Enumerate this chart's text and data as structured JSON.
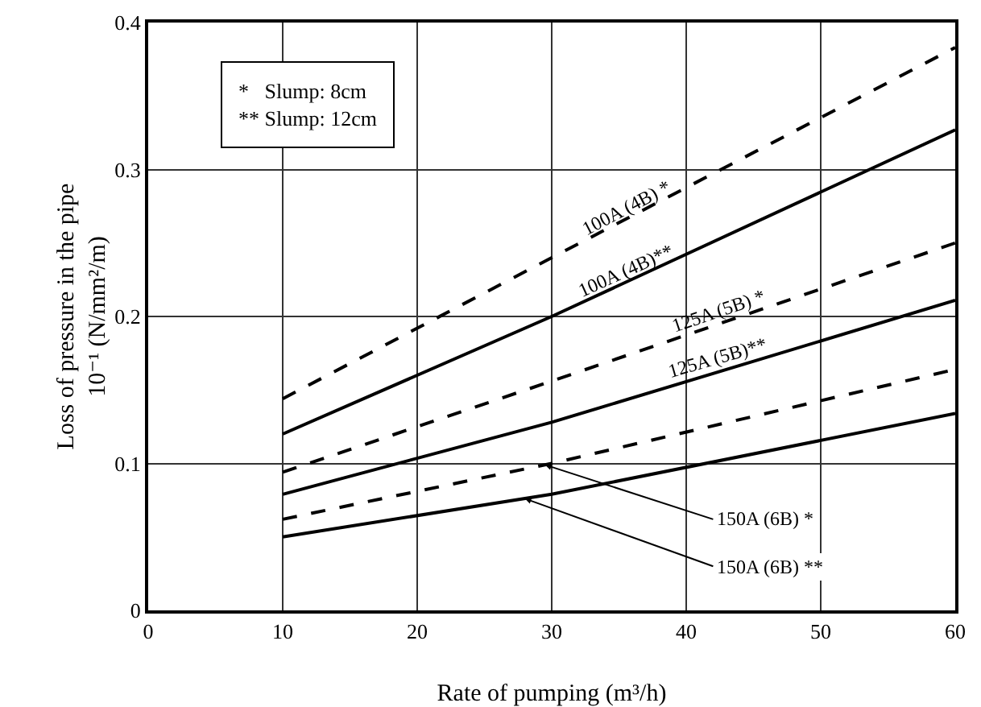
{
  "chart_data": {
    "type": "line",
    "xlabel": "Rate of pumping (m³/h)",
    "ylabel": "Loss of pressure in the pipe\n10⁻¹ (N/mm²/m)",
    "xlim": [
      0,
      60
    ],
    "xticks": [
      0,
      10,
      20,
      30,
      40,
      50,
      60
    ],
    "ylim": [
      0,
      0.4
    ],
    "yticks": [
      0,
      0.1,
      0.2,
      0.3,
      0.4
    ],
    "grid": true,
    "legend": false,
    "marker": "none",
    "annotations": [
      "*   Slump: 8cm\n** Slump: 12cm"
    ],
    "series": [
      {
        "name": "100A (4B) *",
        "color": "#000000",
        "line_style": "dashed",
        "x": [
          10,
          30,
          60
        ],
        "values": [
          0.144,
          0.24,
          0.383
        ]
      },
      {
        "name": "100A (4B)**",
        "color": "#000000",
        "line_style": "solid",
        "x": [
          10,
          30,
          60
        ],
        "values": [
          0.12,
          0.2,
          0.327
        ]
      },
      {
        "name": "125A (5B) *",
        "color": "#000000",
        "line_style": "dashed",
        "x": [
          10,
          30,
          60
        ],
        "values": [
          0.094,
          0.156,
          0.25
        ]
      },
      {
        "name": "125A (5B)**",
        "color": "#000000",
        "line_style": "solid",
        "x": [
          10,
          30,
          60
        ],
        "values": [
          0.079,
          0.128,
          0.211
        ]
      },
      {
        "name": "150A (6B) *",
        "color": "#000000",
        "line_style": "dashed",
        "x": [
          10,
          30,
          60
        ],
        "values": [
          0.062,
          0.1,
          0.164
        ]
      },
      {
        "name": "150A (6B) **",
        "color": "#000000",
        "line_style": "solid",
        "x": [
          10,
          30,
          60
        ],
        "values": [
          0.05,
          0.079,
          0.134
        ]
      }
    ]
  }
}
